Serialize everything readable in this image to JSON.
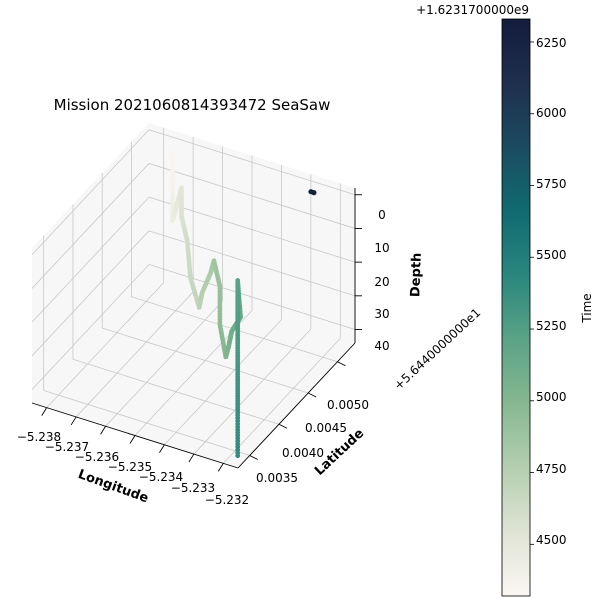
{
  "chart_data": {
    "type": "scatter",
    "title": "Mission 2021060814393472 SeaSaw",
    "xlabel": "Longitude",
    "ylabel": "Latitude",
    "zlabel": "Depth",
    "colorbar_label": "Time",
    "colorbar_offset_text": "+1.6231700000e9",
    "y_offset_text": "+5.6440000000e1",
    "x_ticks": [
      "−5.238",
      "−5.237",
      "−5.236",
      "−5.235",
      "−5.234",
      "−5.233",
      "−5.232"
    ],
    "y_ticks": [
      "0.0035",
      "0.0040",
      "0.0045",
      "0.0050"
    ],
    "z_ticks": [
      "0",
      "10",
      "20",
      "30",
      "40"
    ],
    "colorbar_ticks": [
      "4500",
      "4750",
      "5000",
      "5250",
      "5500",
      "5750",
      "6000",
      "6250"
    ],
    "xlim": [
      -5.2385,
      -5.2315
    ],
    "ylim": [
      0.0033,
      0.0053
    ],
    "zlim": [
      44,
      -2
    ],
    "clim": [
      4320,
      6330
    ],
    "z_inverted": true,
    "grid": true,
    "colormap": [
      "#fbf7f3",
      "#dfe3d4",
      "#b4cfb0",
      "#86b890",
      "#5aa386",
      "#2a877f",
      "#0f6b70",
      "#1c4b61",
      "#1e2f4d",
      "#141c3c"
    ],
    "series": [
      {
        "points": [
          {
            "lon": -5.2373,
            "lat": 0.0051,
            "depth": 0,
            "time": 4330
          },
          {
            "lon": -5.2373,
            "lat": 0.0051,
            "depth": 10,
            "time": 4380
          },
          {
            "lon": -5.2373,
            "lat": 0.0051,
            "depth": 20,
            "time": 4430
          },
          {
            "lon": -5.237,
            "lat": 0.005,
            "depth": 14,
            "time": 4470
          },
          {
            "lon": -5.2368,
            "lat": 0.005,
            "depth": 7,
            "time": 4510
          },
          {
            "lon": -5.2366,
            "lat": 0.0049,
            "depth": 13,
            "time": 4560
          },
          {
            "lon": -5.2364,
            "lat": 0.0049,
            "depth": 20,
            "time": 4610
          },
          {
            "lon": -5.2361,
            "lat": 0.0048,
            "depth": 28,
            "time": 4660
          },
          {
            "lon": -5.2358,
            "lat": 0.0048,
            "depth": 36,
            "time": 4710
          },
          {
            "lon": -5.2355,
            "lat": 0.0047,
            "depth": 29,
            "time": 4760
          },
          {
            "lon": -5.2352,
            "lat": 0.0047,
            "depth": 22,
            "time": 4810
          },
          {
            "lon": -5.2349,
            "lat": 0.0046,
            "depth": 16,
            "time": 4860
          },
          {
            "lon": -5.2347,
            "lat": 0.0046,
            "depth": 23,
            "time": 4900
          },
          {
            "lon": -5.2345,
            "lat": 0.0045,
            "depth": 32,
            "time": 4950
          },
          {
            "lon": -5.2343,
            "lat": 0.0045,
            "depth": 41,
            "time": 5000
          },
          {
            "lon": -5.234,
            "lat": 0.0044,
            "depth": 35,
            "time": 5050
          },
          {
            "lon": -5.2337,
            "lat": 0.0043,
            "depth": 28,
            "time": 5100
          },
          {
            "lon": -5.2334,
            "lat": 0.0043,
            "depth": 23,
            "time": 5160
          },
          {
            "lon": -5.2333,
            "lat": 0.0042,
            "depth": 10,
            "time": 5220
          },
          {
            "lon": -5.2333,
            "lat": 0.0042,
            "depth": 20,
            "time": 5250
          },
          {
            "lon": -5.2333,
            "lat": 0.0042,
            "depth": 30,
            "time": 5290
          },
          {
            "lon": -5.2333,
            "lat": 0.0042,
            "depth": 40,
            "time": 5330
          },
          {
            "lon": -5.2333,
            "lat": 0.0042,
            "depth": 50,
            "time": 5370
          },
          {
            "lon": -5.2333,
            "lat": 0.0042,
            "depth": 62,
            "time": 5400
          },
          {
            "lon": -5.2324,
            "lat": 0.005,
            "depth": -4,
            "time": 6260
          },
          {
            "lon": -5.2323,
            "lat": 0.005,
            "depth": -4,
            "time": 6300
          }
        ]
      }
    ]
  }
}
